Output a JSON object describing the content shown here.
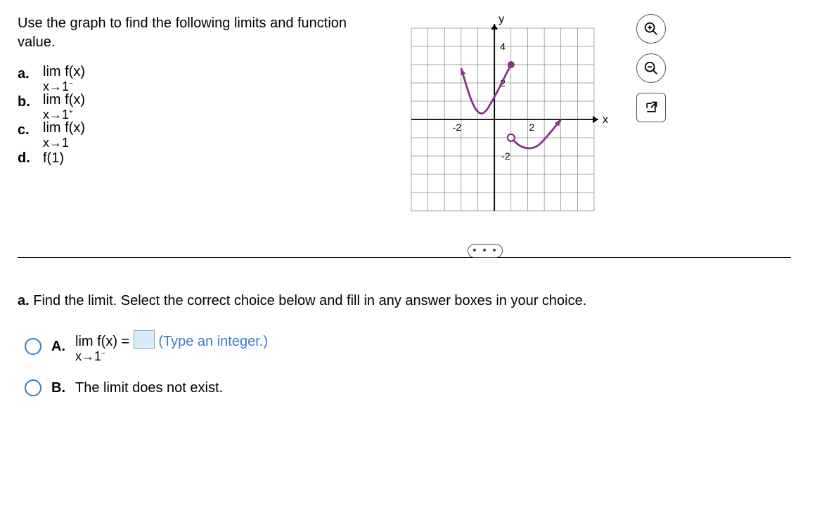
{
  "prompt": "Use the graph to find the following limits and function value.",
  "parts": {
    "a": {
      "letter": "a.",
      "expr_top": "lim f(x)",
      "expr_bot": "x→1",
      "sup": "−"
    },
    "b": {
      "letter": "b.",
      "expr_top": "lim f(x)",
      "expr_bot": "x→1",
      "sup": "+"
    },
    "c": {
      "letter": "c.",
      "expr_top": "lim f(x)",
      "expr_bot": "x→1",
      "sup": ""
    },
    "d": {
      "letter": "d.",
      "text": "f(1)"
    }
  },
  "question_a": {
    "label": "a.",
    "text": "Find the limit. Select the correct choice below and fill in any answer boxes in your choice."
  },
  "choices": {
    "A": {
      "letter": "A.",
      "expr_top": "lim f(x) =",
      "expr_bot": "x→1",
      "sup": "−",
      "hint": "(Type an integer.)"
    },
    "B": {
      "letter": "B.",
      "text": "The limit does not exist."
    }
  },
  "graph": {
    "xmin": -5,
    "xmax": 6,
    "ymin": -5,
    "ymax": 5,
    "xtick_step": 1,
    "ytick_step": 1,
    "x_label": "x",
    "y_label": "y",
    "grid_color": "#555555",
    "curve_color": "#883388",
    "curve_width": 2.8,
    "background": "#ffffff",
    "labels": {
      "neg2x": "-2",
      "pos2x": "2",
      "neg2y": "-2",
      "pos2y": "2",
      "pos4y": "4"
    },
    "left_curve": [
      [
        -2.0,
        2.8
      ],
      [
        -1.3,
        0.7
      ],
      [
        -0.7,
        0.15
      ],
      [
        0.0,
        1.2
      ],
      [
        0.6,
        2.3
      ],
      [
        1.0,
        3.0
      ]
    ],
    "right_curve": [
      [
        1.0,
        -1.0
      ],
      [
        1.6,
        -1.55
      ],
      [
        2.5,
        -1.6
      ],
      [
        3.3,
        -0.8
      ],
      [
        4.0,
        0.0
      ]
    ],
    "closed_point": [
      1,
      3
    ],
    "open_point": [
      1,
      -1
    ]
  },
  "tools": {
    "zoom_in": "zoom-in-icon",
    "zoom_out": "zoom-out-icon",
    "popout": "popout-icon"
  },
  "ellipsis": "• • •"
}
